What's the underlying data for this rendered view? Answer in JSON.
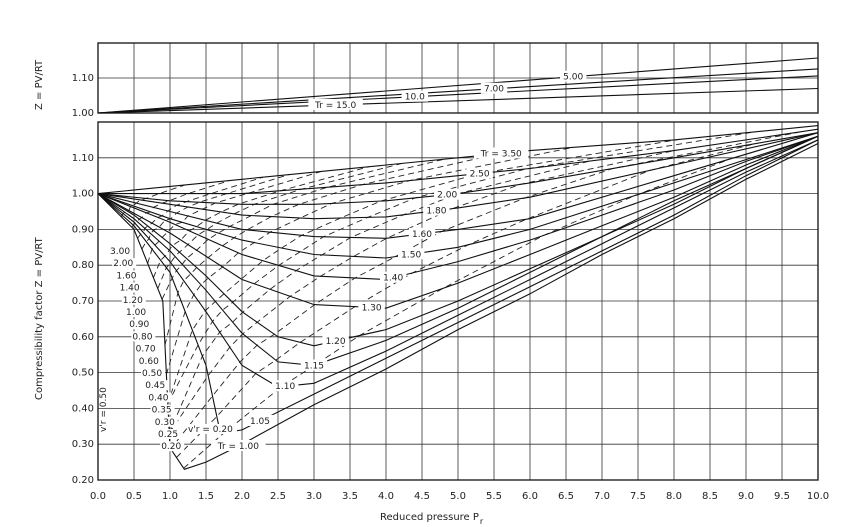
{
  "chart_data": {
    "type": "line",
    "xlabel": "Reduced pressure  P",
    "xlabel_sub": "r",
    "ylabel_top": "Z = PV/RT",
    "ylabel_bottom": "Compressibility factor  Z = PV/RT",
    "x_ticks": [
      "0.0",
      "0.5",
      "1.0",
      "1.5",
      "2.0",
      "2.5",
      "3.0",
      "3.5",
      "4.0",
      "4.5",
      "5.0",
      "5.5",
      "6.0",
      "6.5",
      "7.0",
      "7.5",
      "8.0",
      "8.5",
      "9.0",
      "9.5",
      "10.0"
    ],
    "xlim": [
      0,
      10
    ],
    "grid": true,
    "panels": [
      {
        "name": "top",
        "ylim": [
          1.0,
          1.2
        ],
        "y_ticks": [
          "1.00",
          "1.10"
        ],
        "series": [
          {
            "name": "5.00",
            "points": [
              [
                0,
                1.0
              ],
              [
                10,
                1.157
              ]
            ]
          },
          {
            "name": "7.00",
            "points": [
              [
                0,
                1.0
              ],
              [
                10,
                1.126
              ]
            ]
          },
          {
            "name": "10.0",
            "points": [
              [
                0,
                1.0
              ],
              [
                10,
                1.106
              ]
            ]
          },
          {
            "name": "Tr = 15.0",
            "points": [
              [
                0,
                1.0
              ],
              [
                10,
                1.07
              ]
            ]
          }
        ]
      },
      {
        "name": "bottom",
        "ylim": [
          0.2,
          1.2
        ],
        "y_ticks": [
          "0.20",
          "0.30",
          "0.40",
          "0.50",
          "0.60",
          "0.70",
          "0.80",
          "0.90",
          "1.00",
          "1.10"
        ],
        "series": [
          {
            "name": "Tr = 3.50",
            "points": [
              [
                0,
                1
              ],
              [
                2,
                1.04
              ],
              [
                4,
                1.08
              ],
              [
                6,
                1.12
              ],
              [
                8,
                1.15
              ],
              [
                10,
                1.19
              ]
            ]
          },
          {
            "name": "2.50",
            "points": [
              [
                0,
                1
              ],
              [
                2,
                1.0
              ],
              [
                4,
                1.03
              ],
              [
                6,
                1.07
              ],
              [
                8,
                1.12
              ],
              [
                10,
                1.18
              ]
            ]
          },
          {
            "name": "2.00",
            "points": [
              [
                0,
                1
              ],
              [
                1,
                0.98
              ],
              [
                2,
                0.97
              ],
              [
                3,
                0.97
              ],
              [
                4,
                0.98
              ],
              [
                5,
                1.0
              ],
              [
                6,
                1.03
              ],
              [
                8,
                1.1
              ],
              [
                10,
                1.17
              ]
            ]
          },
          {
            "name": "1.80",
            "points": [
              [
                0,
                1
              ],
              [
                1,
                0.97
              ],
              [
                2,
                0.94
              ],
              [
                3,
                0.93
              ],
              [
                4,
                0.935
              ],
              [
                5,
                0.96
              ],
              [
                6,
                0.99
              ],
              [
                8,
                1.08
              ],
              [
                10,
                1.17
              ]
            ]
          },
          {
            "name": "1.60",
            "points": [
              [
                0,
                1
              ],
              [
                1,
                0.95
              ],
              [
                2,
                0.9
              ],
              [
                3,
                0.88
              ],
              [
                4,
                0.875
              ],
              [
                5,
                0.9
              ],
              [
                6,
                0.93
              ],
              [
                8,
                1.05
              ],
              [
                10,
                1.17
              ]
            ]
          },
          {
            "name": "1.50",
            "points": [
              [
                0,
                1
              ],
              [
                1,
                0.93
              ],
              [
                2,
                0.87
              ],
              [
                3,
                0.83
              ],
              [
                4,
                0.82
              ],
              [
                5,
                0.85
              ],
              [
                6,
                0.9
              ],
              [
                8,
                1.03
              ],
              [
                10,
                1.16
              ]
            ]
          },
          {
            "name": "1.40",
            "points": [
              [
                0,
                1
              ],
              [
                1,
                0.92
              ],
              [
                2,
                0.83
              ],
              [
                3,
                0.77
              ],
              [
                4,
                0.76
              ],
              [
                5,
                0.81
              ],
              [
                6,
                0.87
              ],
              [
                7,
                0.94
              ],
              [
                8,
                1.01
              ],
              [
                9,
                1.09
              ],
              [
                10,
                1.16
              ]
            ]
          },
          {
            "name": "1.30",
            "points": [
              [
                0,
                1
              ],
              [
                1,
                0.89
              ],
              [
                2,
                0.76
              ],
              [
                3,
                0.69
              ],
              [
                4,
                0.68
              ],
              [
                5,
                0.75
              ],
              [
                6,
                0.83
              ],
              [
                7,
                0.91
              ],
              [
                8,
                0.99
              ],
              [
                9,
                1.08
              ],
              [
                10,
                1.16
              ]
            ]
          },
          {
            "name": "1.20",
            "points": [
              [
                0,
                1
              ],
              [
                0.5,
                0.94
              ],
              [
                1,
                0.86
              ],
              [
                1.5,
                0.77
              ],
              [
                2,
                0.67
              ],
              [
                2.5,
                0.6
              ],
              [
                3,
                0.575
              ],
              [
                4,
                0.62
              ],
              [
                5,
                0.7
              ],
              [
                6,
                0.79
              ],
              [
                7,
                0.88
              ],
              [
                8,
                0.98
              ],
              [
                9,
                1.07
              ],
              [
                10,
                1.16
              ]
            ]
          },
          {
            "name": "1.15",
            "points": [
              [
                0,
                1
              ],
              [
                0.5,
                0.93
              ],
              [
                1,
                0.84
              ],
              [
                1.5,
                0.73
              ],
              [
                2,
                0.61
              ],
              [
                2.5,
                0.53
              ],
              [
                3,
                0.52
              ],
              [
                4,
                0.59
              ],
              [
                5,
                0.68
              ],
              [
                6,
                0.78
              ],
              [
                7,
                0.88
              ],
              [
                8,
                0.97
              ],
              [
                9,
                1.07
              ],
              [
                10,
                1.16
              ]
            ]
          },
          {
            "name": "1.10",
            "points": [
              [
                0,
                1
              ],
              [
                0.5,
                0.92
              ],
              [
                1,
                0.81
              ],
              [
                1.5,
                0.67
              ],
              [
                2,
                0.52
              ],
              [
                2.5,
                0.46
              ],
              [
                3,
                0.47
              ],
              [
                4,
                0.56
              ],
              [
                5,
                0.66
              ],
              [
                6,
                0.76
              ],
              [
                7,
                0.86
              ],
              [
                8,
                0.96
              ],
              [
                9,
                1.06
              ],
              [
                10,
                1.15
              ]
            ]
          },
          {
            "name": "1.05",
            "points": [
              [
                0,
                1
              ],
              [
                0.5,
                0.91
              ],
              [
                1,
                0.78
              ],
              [
                1.5,
                0.52
              ],
              [
                1.7,
                0.33
              ],
              [
                2,
                0.34
              ],
              [
                3,
                0.44
              ],
              [
                4,
                0.54
              ],
              [
                5,
                0.64
              ],
              [
                6,
                0.74
              ],
              [
                7,
                0.84
              ],
              [
                8,
                0.94
              ],
              [
                9,
                1.05
              ],
              [
                10,
                1.15
              ]
            ]
          },
          {
            "name": "Tr = 1.00",
            "points": [
              [
                0,
                1
              ],
              [
                0.5,
                0.9
              ],
              [
                0.9,
                0.7
              ],
              [
                1,
                0.29
              ],
              [
                1.2,
                0.23
              ],
              [
                1.5,
                0.25
              ],
              [
                2,
                0.3
              ],
              [
                3,
                0.41
              ],
              [
                4,
                0.51
              ],
              [
                5,
                0.62
              ],
              [
                6,
                0.72
              ],
              [
                7,
                0.83
              ],
              [
                8,
                0.93
              ],
              [
                9,
                1.04
              ],
              [
                10,
                1.14
              ]
            ]
          }
        ],
        "ideal_reduced_volume_lines": {
          "style": "dashed",
          "values": [
            "3.00",
            "2.00",
            "1.60",
            "1.40",
            "1.20",
            "1.00",
            "0.90",
            "0.80",
            "0.70",
            "0.60",
            "0.50",
            "0.45",
            "0.40",
            "0.35",
            "0.30",
            "0.25",
            "0.20"
          ],
          "annotations": [
            "v'r = 0.50",
            "v'r = 0.20"
          ]
        }
      }
    ]
  }
}
